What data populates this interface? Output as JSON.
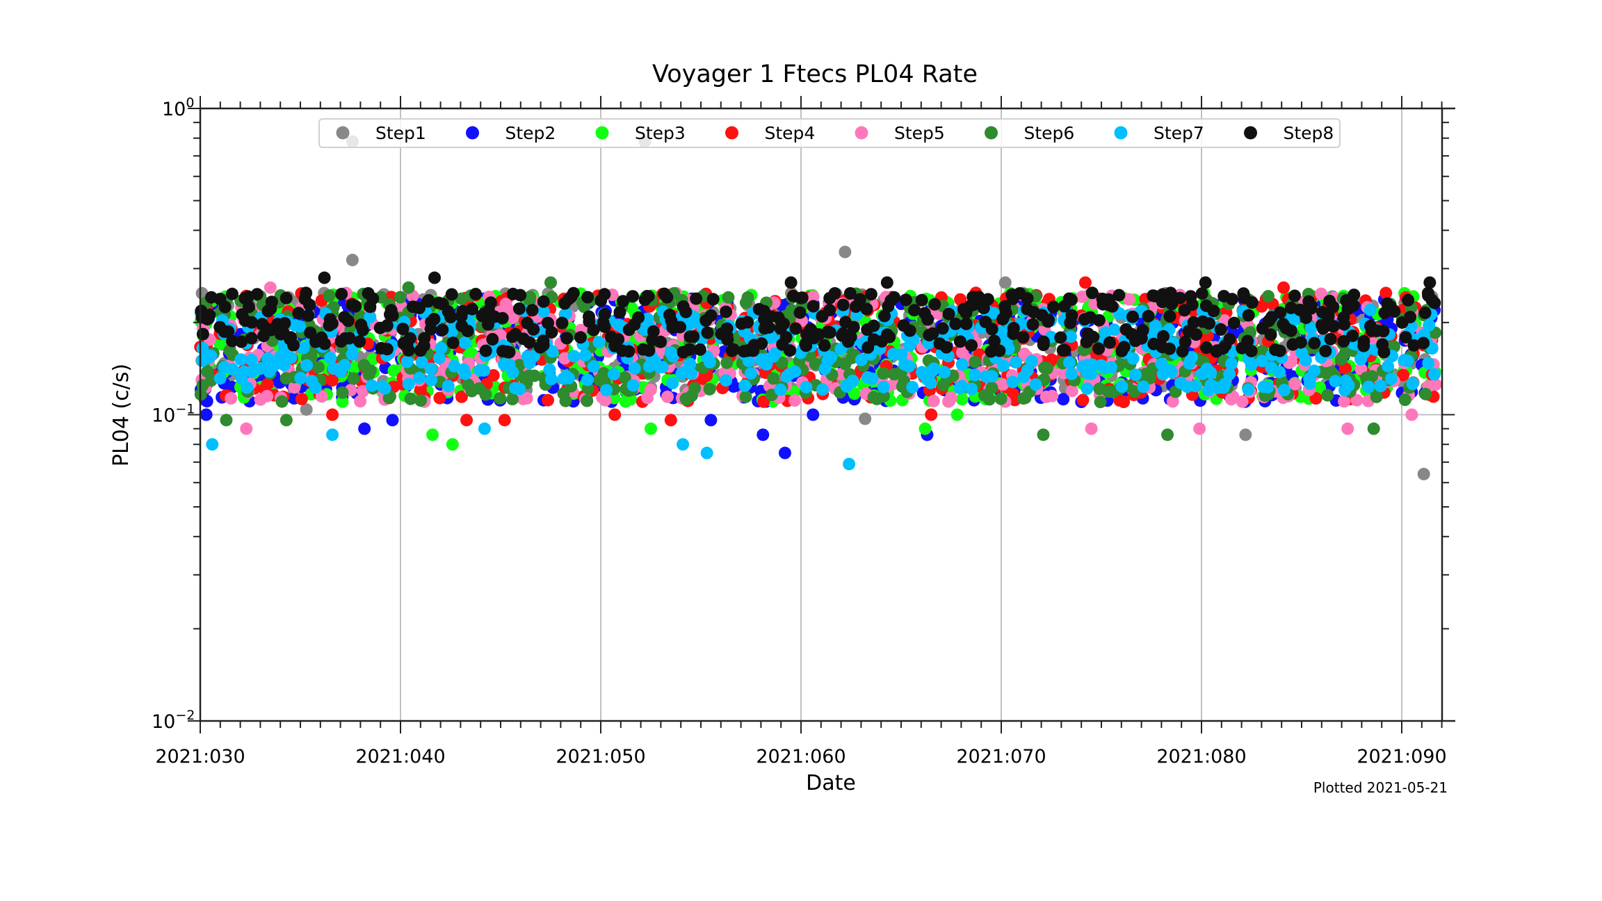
{
  "chart_data": {
    "type": "scatter",
    "title": "Voyager 1 Ftecs PL04 Rate",
    "xlabel": "Date",
    "ylabel": "PL04 (c/s)",
    "xlim": [
      30,
      92
    ],
    "ylim": [
      0.01,
      1
    ],
    "yscale": "log",
    "grid": "vertical major lines",
    "legend_position": "top-center",
    "x_ticks": [
      {
        "value": 30,
        "label": "2021:030"
      },
      {
        "value": 40,
        "label": "2021:040"
      },
      {
        "value": 50,
        "label": "2021:050"
      },
      {
        "value": 60,
        "label": "2021:060"
      },
      {
        "value": 70,
        "label": "2021:070"
      },
      {
        "value": 80,
        "label": "2021:080"
      },
      {
        "value": 90,
        "label": "2021:090"
      }
    ],
    "y_ticks": [
      {
        "value": 1,
        "base": "10",
        "exp": "0"
      },
      {
        "value": 0.1,
        "base": "10",
        "exp": "−1"
      },
      {
        "value": 0.01,
        "base": "10",
        "exp": "−2"
      }
    ],
    "footnote": "Plotted 2021-05-21",
    "series": [
      {
        "name": "Step1",
        "color": "#888888",
        "band": [
          0.12,
          0.25
        ],
        "points": [
          [
            37.6,
            0.78
          ],
          [
            52.2,
            0.78
          ],
          [
            37.6,
            0.32
          ],
          [
            62.2,
            0.34
          ],
          [
            70.2,
            0.27
          ],
          [
            91.1,
            0.064
          ],
          [
            82.2,
            0.086
          ],
          [
            63.2,
            0.097
          ],
          [
            35.3,
            0.104
          ]
        ]
      },
      {
        "name": "Step2",
        "color": "#1010ff",
        "band": [
          0.11,
          0.24
        ],
        "points": [
          [
            30.3,
            0.1
          ],
          [
            38.2,
            0.09
          ],
          [
            39.6,
            0.096
          ],
          [
            58.1,
            0.086
          ],
          [
            59.2,
            0.075
          ],
          [
            66.3,
            0.086
          ],
          [
            55.5,
            0.096
          ],
          [
            60.6,
            0.1
          ]
        ]
      },
      {
        "name": "Step3",
        "color": "#11ff11",
        "band": [
          0.11,
          0.25
        ],
        "points": [
          [
            41.6,
            0.086
          ],
          [
            42.6,
            0.08
          ],
          [
            52.5,
            0.09
          ],
          [
            66.2,
            0.09
          ],
          [
            67.8,
            0.1
          ]
        ]
      },
      {
        "name": "Step4",
        "color": "#ff1111",
        "band": [
          0.11,
          0.25
        ],
        "points": [
          [
            36.6,
            0.1
          ],
          [
            43.3,
            0.096
          ],
          [
            45.2,
            0.096
          ],
          [
            50.7,
            0.1
          ],
          [
            53.5,
            0.096
          ],
          [
            66.5,
            0.1
          ],
          [
            74.2,
            0.27
          ],
          [
            84.1,
            0.26
          ]
        ]
      },
      {
        "name": "Step5",
        "color": "#ff77bb",
        "band": [
          0.11,
          0.25
        ],
        "points": [
          [
            32.3,
            0.09
          ],
          [
            74.5,
            0.09
          ],
          [
            79.9,
            0.09
          ],
          [
            87.3,
            0.09
          ],
          [
            33.5,
            0.26
          ],
          [
            90.5,
            0.1
          ]
        ]
      },
      {
        "name": "Step6",
        "color": "#2e8b2e",
        "band": [
          0.11,
          0.25
        ],
        "points": [
          [
            31.3,
            0.096
          ],
          [
            34.3,
            0.096
          ],
          [
            72.1,
            0.086
          ],
          [
            78.3,
            0.086
          ],
          [
            88.6,
            0.09
          ],
          [
            40.4,
            0.26
          ],
          [
            47.5,
            0.27
          ]
        ]
      },
      {
        "name": "Step7",
        "color": "#00bfff",
        "band": [
          0.12,
          0.22
        ],
        "points": [
          [
            30.6,
            0.08
          ],
          [
            36.6,
            0.086
          ],
          [
            54.1,
            0.08
          ],
          [
            55.3,
            0.075
          ],
          [
            62.4,
            0.069
          ],
          [
            44.2,
            0.09
          ]
        ]
      },
      {
        "name": "Step8",
        "color": "#111111",
        "band": [
          0.16,
          0.25
        ],
        "points": [
          [
            36.2,
            0.28
          ],
          [
            41.7,
            0.28
          ],
          [
            59.5,
            0.27
          ],
          [
            80.2,
            0.27
          ],
          [
            91.4,
            0.27
          ],
          [
            64.3,
            0.27
          ]
        ]
      }
    ]
  }
}
